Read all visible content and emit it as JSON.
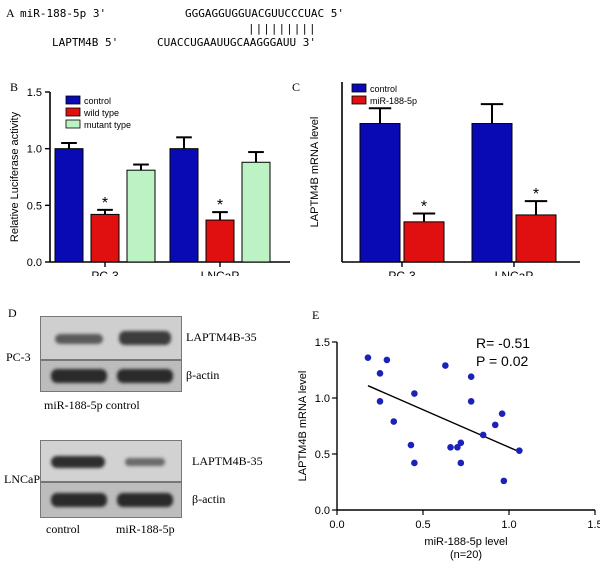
{
  "panel_a": {
    "letter": "A",
    "mir_label": "miR-188-5p 3'",
    "mir_seq": "GGGAGGUGGUACGUUCCCUAC 5'",
    "pairing": "|||||||||",
    "target_label": "LAPTM4B 5'",
    "target_seq": "CUACCUGAAUUGCAAGGGAUU 3'"
  },
  "panel_b_letter": "B",
  "panel_c_letter": "C",
  "panel_d": {
    "letter": "D",
    "pc3_cell": "PC-3",
    "lncap_cell": "LNCaP",
    "band_laptm4b": "LAPTM4B-35",
    "band_actin": "β-actin",
    "pc3_lanes": "miR-188-5p control",
    "lncap_lane_control": "control",
    "lncap_lane_mir": "miR-188-5p"
  },
  "panel_e_letter": "E",
  "chart_data": [
    {
      "type": "bar",
      "panel": "B",
      "ylabel": "Relative Luciferase activity",
      "ylim": [
        0.0,
        1.5
      ],
      "yticks": [
        "0.0",
        "0.5",
        "1.0",
        "1.5"
      ],
      "categories": [
        "PC-3",
        "LNCaP"
      ],
      "legend_placement": "top",
      "series": [
        {
          "name": "control",
          "color": "#0a0ab4",
          "values": [
            1.0,
            1.0
          ],
          "errors": [
            0.05,
            0.1
          ],
          "sig": [
            "",
            ""
          ]
        },
        {
          "name": "wild type",
          "color": "#e01010",
          "values": [
            0.42,
            0.37
          ],
          "errors": [
            0.04,
            0.07
          ],
          "sig": [
            "*",
            "*"
          ]
        },
        {
          "name": "mutant type",
          "color": "#bdf3c4",
          "values": [
            0.81,
            0.88
          ],
          "errors": [
            0.05,
            0.09
          ],
          "sig": [
            "",
            ""
          ]
        }
      ]
    },
    {
      "type": "bar",
      "panel": "C",
      "ylabel": "LAPTM4B mRNA level",
      "ylim": [
        0.0,
        1.3
      ],
      "yticks": [],
      "categories": [
        "PC-3",
        "LNCaP"
      ],
      "legend_placement": "top",
      "series": [
        {
          "name": "control",
          "color": "#0a0ab4",
          "values": [
            1.0,
            1.0
          ],
          "errors": [
            0.11,
            0.14
          ],
          "sig": [
            "",
            ""
          ]
        },
        {
          "name": "miR-188-5p",
          "color": "#e01010",
          "values": [
            0.29,
            0.34
          ],
          "errors": [
            0.06,
            0.1
          ],
          "sig": [
            "*",
            "*"
          ]
        }
      ]
    },
    {
      "type": "scatter",
      "panel": "E",
      "xlabel": "miR-188-5p level",
      "xlabel_note": "(n=20)",
      "ylabel": "LAPTM4B mRNA level",
      "xlim": [
        0.0,
        1.5
      ],
      "ylim": [
        0.0,
        1.5
      ],
      "xticks": [
        "0.0",
        "0.5",
        "1.0",
        "1.5"
      ],
      "yticks": [
        "0.0",
        "0.5",
        "1.0",
        "1.5"
      ],
      "r_text": "R= -0.51",
      "p_text": "P = 0.02",
      "point_color": "#1a22b8",
      "points": [
        [
          0.18,
          1.36
        ],
        [
          0.25,
          1.22
        ],
        [
          0.29,
          1.34
        ],
        [
          0.25,
          0.97
        ],
        [
          0.33,
          0.79
        ],
        [
          0.45,
          1.04
        ],
        [
          0.43,
          0.58
        ],
        [
          0.45,
          0.42
        ],
        [
          0.63,
          1.29
        ],
        [
          0.66,
          0.56
        ],
        [
          0.7,
          0.56
        ],
        [
          0.72,
          0.6
        ],
        [
          0.72,
          0.42
        ],
        [
          0.78,
          1.19
        ],
        [
          0.78,
          0.97
        ],
        [
          0.85,
          0.67
        ],
        [
          0.92,
          0.76
        ],
        [
          0.96,
          0.86
        ],
        [
          0.97,
          0.26
        ],
        [
          1.06,
          0.53
        ]
      ],
      "fit_line": [
        [
          0.18,
          1.11
        ],
        [
          1.06,
          0.52
        ]
      ]
    }
  ]
}
